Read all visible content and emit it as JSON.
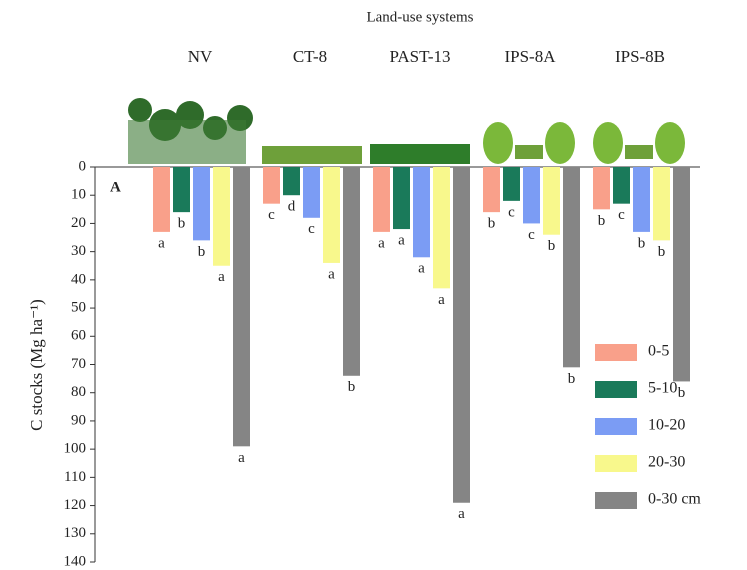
{
  "chart_data": {
    "type": "bar",
    "title": "Land-use systems",
    "ylabel": "C stocks (Mg ha⁻¹)",
    "panel": "A",
    "categories": [
      "NV",
      "CT-8",
      "PAST-13",
      "IPS-8A",
      "IPS-8B"
    ],
    "series": [
      {
        "name": "0-5",
        "color": "#f9a08a",
        "values": [
          23,
          13,
          23,
          16,
          15
        ],
        "letters": [
          "a",
          "c",
          "a",
          "b",
          "b"
        ]
      },
      {
        "name": "5-10",
        "color": "#1a7a5a",
        "values": [
          16,
          10,
          22,
          12,
          13
        ],
        "letters": [
          "b",
          "d",
          "a",
          "c",
          "c"
        ]
      },
      {
        "name": "10-20",
        "color": "#7b9cf4",
        "values": [
          26,
          18,
          32,
          20,
          23
        ],
        "letters": [
          "b",
          "c",
          "a",
          "c",
          "b"
        ]
      },
      {
        "name": "20-30",
        "color": "#f8f88c",
        "values": [
          35,
          34,
          43,
          24,
          26
        ],
        "letters": [
          "a",
          "a",
          "a",
          "b",
          "b"
        ]
      },
      {
        "name": "0-30 cm",
        "color": "#858585",
        "values": [
          99,
          74,
          119,
          71,
          76
        ],
        "letters": [
          "a",
          "b",
          "a",
          "b",
          "b"
        ]
      }
    ],
    "ylim": [
      0,
      140
    ],
    "inverted": true,
    "yticks": [
      0,
      10,
      20,
      30,
      40,
      50,
      60,
      70,
      80,
      90,
      100,
      110,
      120,
      130,
      140
    ],
    "legend": "bottom-right"
  }
}
